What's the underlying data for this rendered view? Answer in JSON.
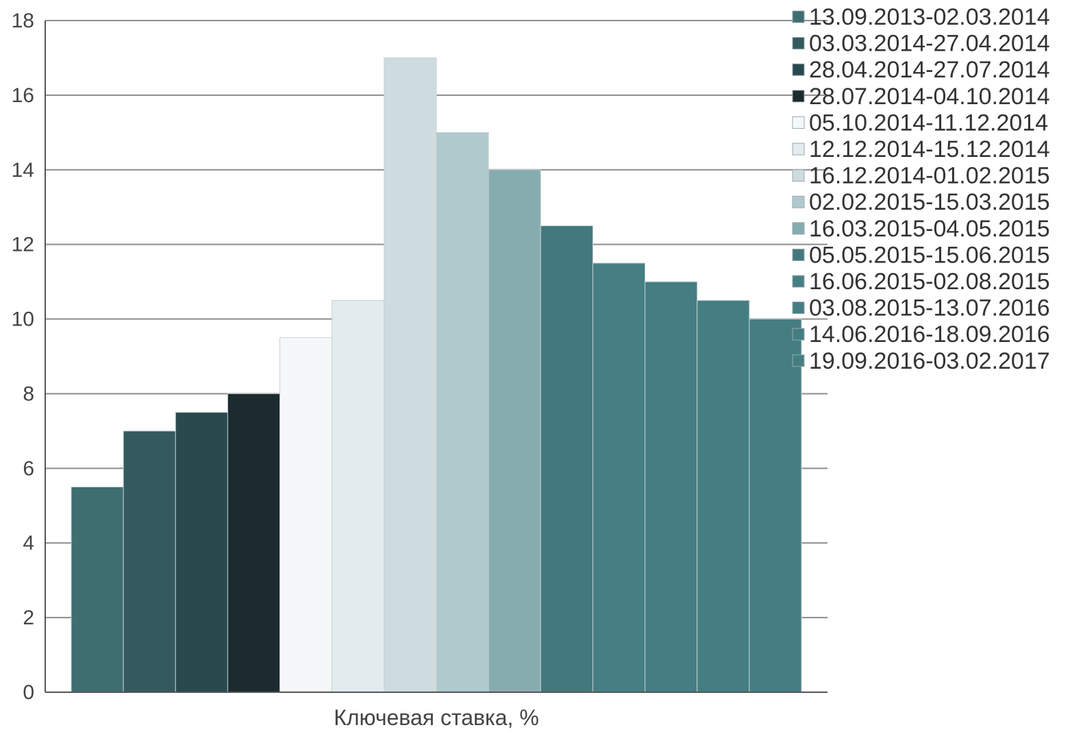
{
  "chart_data": {
    "type": "bar",
    "xlabel": "Ключевая ставка, %",
    "ylabel": "",
    "ylim": [
      0,
      18
    ],
    "yticks": [
      "0",
      "2",
      "4",
      "6",
      "8",
      "10",
      "12",
      "14",
      "16",
      "18"
    ],
    "grid": true,
    "legend_position": "right",
    "series": [
      {
        "name": "13.09.2013-02.03.2014",
        "value": 5.5,
        "color": "#3f6e71"
      },
      {
        "name": "03.03.2014-27.04.2014",
        "value": 7,
        "color": "#335a5e"
      },
      {
        "name": "28.04.2014-27.07.2014",
        "value": 7.5,
        "color": "#284a4e"
      },
      {
        "name": "28.07.2014-04.10.2014",
        "value": 8,
        "color": "#1b2b2e"
      },
      {
        "name": "05.10.2014-11.12.2014",
        "value": 9.5,
        "color": "#f5f8f9"
      },
      {
        "name": "12.12.2014-15.12.2014",
        "value": 10.5,
        "color": "#e2ebed"
      },
      {
        "name": "16.12.2014-01.02.2015",
        "value": 17,
        "color": "#cedcdf"
      },
      {
        "name": "02.02.2015-15.03.2015",
        "value": 15,
        "color": "#b0c9cc"
      },
      {
        "name": "16.03.2015-04.05.2015",
        "value": 14,
        "color": "#87acb0"
      },
      {
        "name": "05.05.2015-15.06.2015",
        "value": 12.5,
        "color": "#43797e"
      },
      {
        "name": "16.06.2015-02.08.2015",
        "value": 11.5,
        "color": "#457f84"
      },
      {
        "name": "03.08.2015-13.07.2016",
        "value": 11,
        "color": "#447e83"
      },
      {
        "name": "14.06.2016-18.09.2016",
        "value": 10.5,
        "color": "#447e83"
      },
      {
        "name": "19.09.2016-03.02.2017",
        "value": 10,
        "color": "#447e83"
      }
    ]
  }
}
